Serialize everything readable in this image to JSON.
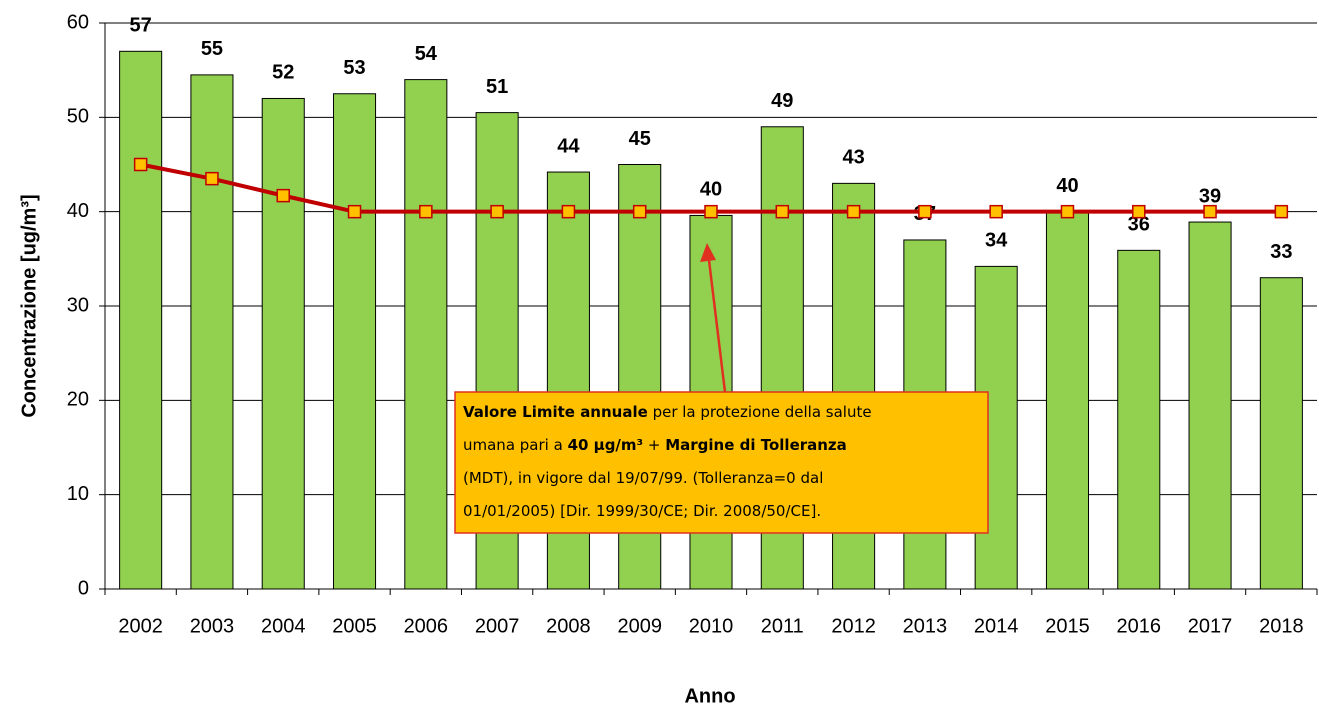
{
  "chart_data": {
    "type": "bar",
    "x_label": "Anno",
    "y_label": "Concentrazione [ug/m³]",
    "categories": [
      "2002",
      "2003",
      "2004",
      "2005",
      "2006",
      "2007",
      "2008",
      "2009",
      "2010",
      "2011",
      "2012",
      "2013",
      "2014",
      "2015",
      "2016",
      "2017",
      "2018"
    ],
    "series": [
      {
        "type": "bar",
        "color": "#92d050",
        "values": [
          57,
          54.5,
          52,
          52.5,
          54,
          50.5,
          44.2,
          45,
          39.6,
          49,
          43,
          37,
          34.2,
          40,
          35.9,
          38.9,
          33
        ],
        "value_labels": [
          "57",
          "55",
          "52",
          "53",
          "54",
          "51",
          "44",
          "45",
          "40",
          "49",
          "43",
          "37",
          "34",
          "40",
          "36",
          "39",
          "33"
        ]
      },
      {
        "type": "line",
        "color": "#c00000",
        "marker_color": "#ffc000",
        "values": [
          45,
          43.5,
          41.7,
          40,
          40,
          40,
          40,
          40,
          40,
          40,
          40,
          40,
          40,
          40,
          40,
          40,
          40
        ]
      }
    ],
    "ylim": [
      0,
      60
    ],
    "yticks": [
      0,
      10,
      20,
      30,
      40,
      50,
      60
    ],
    "grid": true,
    "annotation": {
      "lines": [
        [
          {
            "text": "Valore Limite annuale",
            "bold": true
          },
          {
            "text": " per la protezione della salute",
            "bold": false
          }
        ],
        [
          {
            "text": "umana pari a ",
            "bold": false
          },
          {
            "text": "40 µg/m³",
            "bold": true
          },
          {
            "text": " + ",
            "bold": false
          },
          {
            "text": "Margine di Tolleranza",
            "bold": true
          }
        ],
        [
          {
            "text": "(MDT), in vigore dal 19/07/99. (Tolleranza=0 dal",
            "bold": false
          }
        ],
        [
          {
            "text": "01/01/2005) [Dir. 1999/30/CE; Dir. 2008/50/CE].",
            "bold": false
          }
        ]
      ],
      "fill": "#ffc000",
      "color": "#e03020"
    }
  }
}
